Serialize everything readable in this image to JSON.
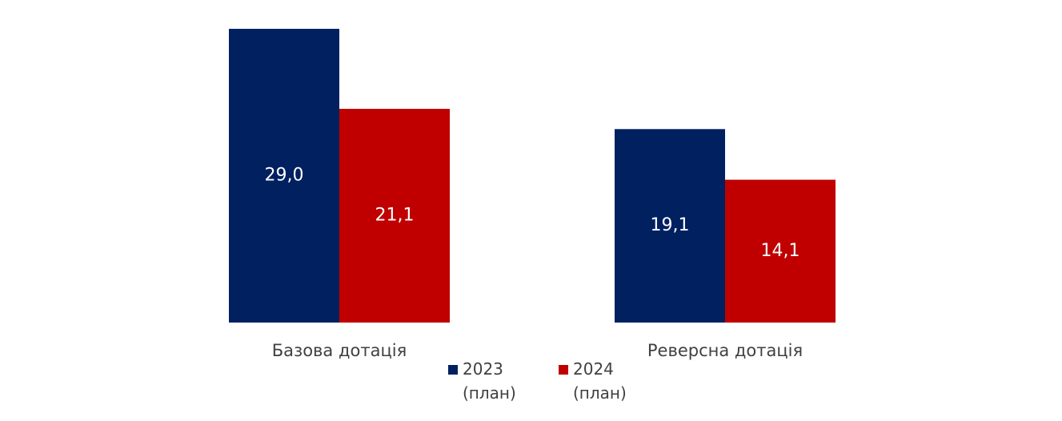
{
  "chart_data": {
    "type": "bar",
    "categories": [
      "Базова дотація",
      "Реверсна дотація"
    ],
    "series": [
      {
        "name": "2023 (план)",
        "color": "#002060",
        "values": [
          29.0,
          19.1
        ],
        "value_labels": [
          "29,0",
          "19,1"
        ]
      },
      {
        "name": "2024 (план)",
        "color": "#c00000",
        "values": [
          21.1,
          14.1
        ],
        "value_labels": [
          "21,1",
          "14,1"
        ]
      }
    ]
  }
}
